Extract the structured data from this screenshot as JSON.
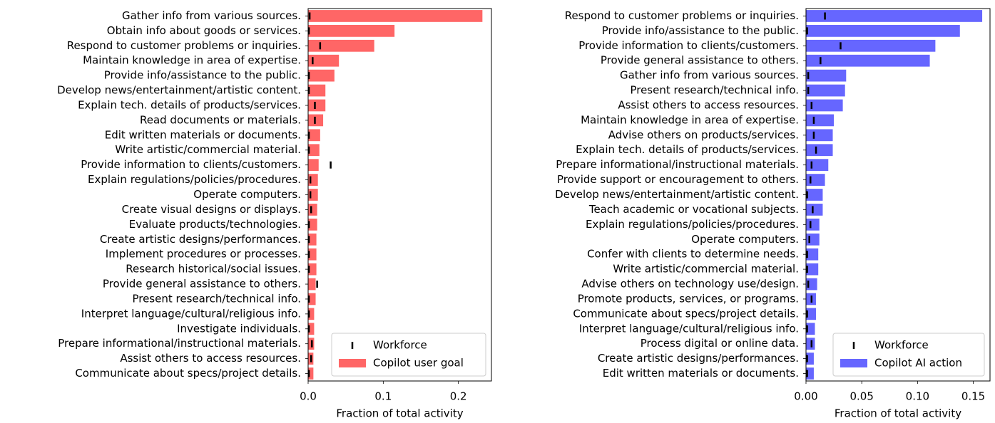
{
  "chart_data": [
    {
      "type": "bar",
      "orientation": "horizontal",
      "categories": [
        "Gather info from various sources.",
        "Obtain info about goods or services.",
        "Respond to customer problems or inquiries.",
        "Maintain knowledge in area of expertise.",
        "Provide info/assistance to the public.",
        "Develop news/entertainment/artistic content.",
        "Explain tech. details of products/services.",
        "Read documents or materials.",
        "Edit written materials or documents.",
        "Write artistic/commercial material.",
        "Provide information to clients/customers.",
        "Explain regulations/policies/procedures.",
        "Operate computers.",
        "Create visual designs or displays.",
        "Evaluate products/technologies.",
        "Create artistic designs/performances.",
        "Implement procedures or processes.",
        "Research historical/social issues.",
        "Provide general assistance to others.",
        "Present research/technical info.",
        "Interpret language/cultural/religious info.",
        "Investigate individuals.",
        "Prepare informational/instructional materials.",
        "Assist others to access resources.",
        "Communicate about specs/project details."
      ],
      "series": [
        {
          "name": "Workforce",
          "type": "scatter",
          "color": "#000000",
          "values": [
            0.002,
            0.001,
            0.016,
            0.006,
            0.001,
            0.001,
            0.009,
            0.009,
            0.001,
            0.001,
            0.03,
            0.003,
            0.003,
            0.004,
            0.001,
            0.001,
            0.001,
            0.001,
            0.012,
            0.001,
            0.001,
            0.001,
            0.005,
            0.004,
            0.001
          ]
        },
        {
          "name": "Copilot user goal",
          "type": "bar",
          "color": "#ff6666",
          "values": [
            0.232,
            0.115,
            0.088,
            0.041,
            0.035,
            0.023,
            0.023,
            0.02,
            0.016,
            0.015,
            0.014,
            0.013,
            0.013,
            0.012,
            0.012,
            0.011,
            0.011,
            0.011,
            0.01,
            0.01,
            0.008,
            0.008,
            0.008,
            0.007,
            0.007
          ]
        }
      ],
      "xlabel": "Fraction of total activity",
      "xlim": [
        0,
        0.244
      ],
      "xticks": [
        {
          "value": 0,
          "label": "0.0"
        },
        0.1,
        0.2
      ],
      "legend": "lower right"
    },
    {
      "type": "bar",
      "orientation": "horizontal",
      "categories": [
        "Respond to customer problems or inquiries.",
        "Provide info/assistance to the public.",
        "Provide information to clients/customers.",
        "Provide general assistance to others.",
        "Gather info from various sources.",
        "Present research/technical info.",
        "Assist others to access resources.",
        "Maintain knowledge in area of expertise.",
        "Advise others on products/services.",
        "Explain tech. details of products/services.",
        "Prepare informational/instructional materials.",
        "Provide support or encouragement to others.",
        "Develop news/entertainment/artistic content.",
        "Teach academic or vocational subjects.",
        "Explain regulations/policies/procedures.",
        "Operate computers.",
        "Confer with clients to determine needs.",
        "Write artistic/commercial material.",
        "Advise others on technology use/design.",
        "Promote products, services, or programs.",
        "Communicate about specs/project details.",
        "Interpret language/cultural/religious info.",
        "Process digital or online data.",
        "Create artistic designs/performances.",
        "Edit written materials or documents."
      ],
      "series": [
        {
          "name": "Workforce",
          "type": "scatter",
          "color": "#000000",
          "values": [
            0.017,
            0.001,
            0.031,
            0.013,
            0.002,
            0.002,
            0.005,
            0.007,
            0.007,
            0.009,
            0.005,
            0.004,
            0.001,
            0.006,
            0.004,
            0.003,
            0.001,
            0.001,
            0.002,
            0.005,
            0.001,
            0.001,
            0.005,
            0.001,
            0.001
          ]
        },
        {
          "name": "Copilot AI action",
          "type": "bar",
          "color": "#6666ff",
          "values": [
            0.158,
            0.138,
            0.116,
            0.111,
            0.036,
            0.035,
            0.033,
            0.025,
            0.024,
            0.024,
            0.02,
            0.017,
            0.015,
            0.015,
            0.012,
            0.012,
            0.011,
            0.011,
            0.01,
            0.009,
            0.009,
            0.008,
            0.008,
            0.007,
            0.007
          ]
        }
      ],
      "xlabel": "Fraction of total activity",
      "xlim": [
        0,
        0.165
      ],
      "xticks": [
        {
          "value": 0,
          "label": "0.00"
        },
        0.05,
        {
          "value": 0.1,
          "label": "0.10"
        },
        0.15
      ],
      "legend": "lower right"
    }
  ]
}
